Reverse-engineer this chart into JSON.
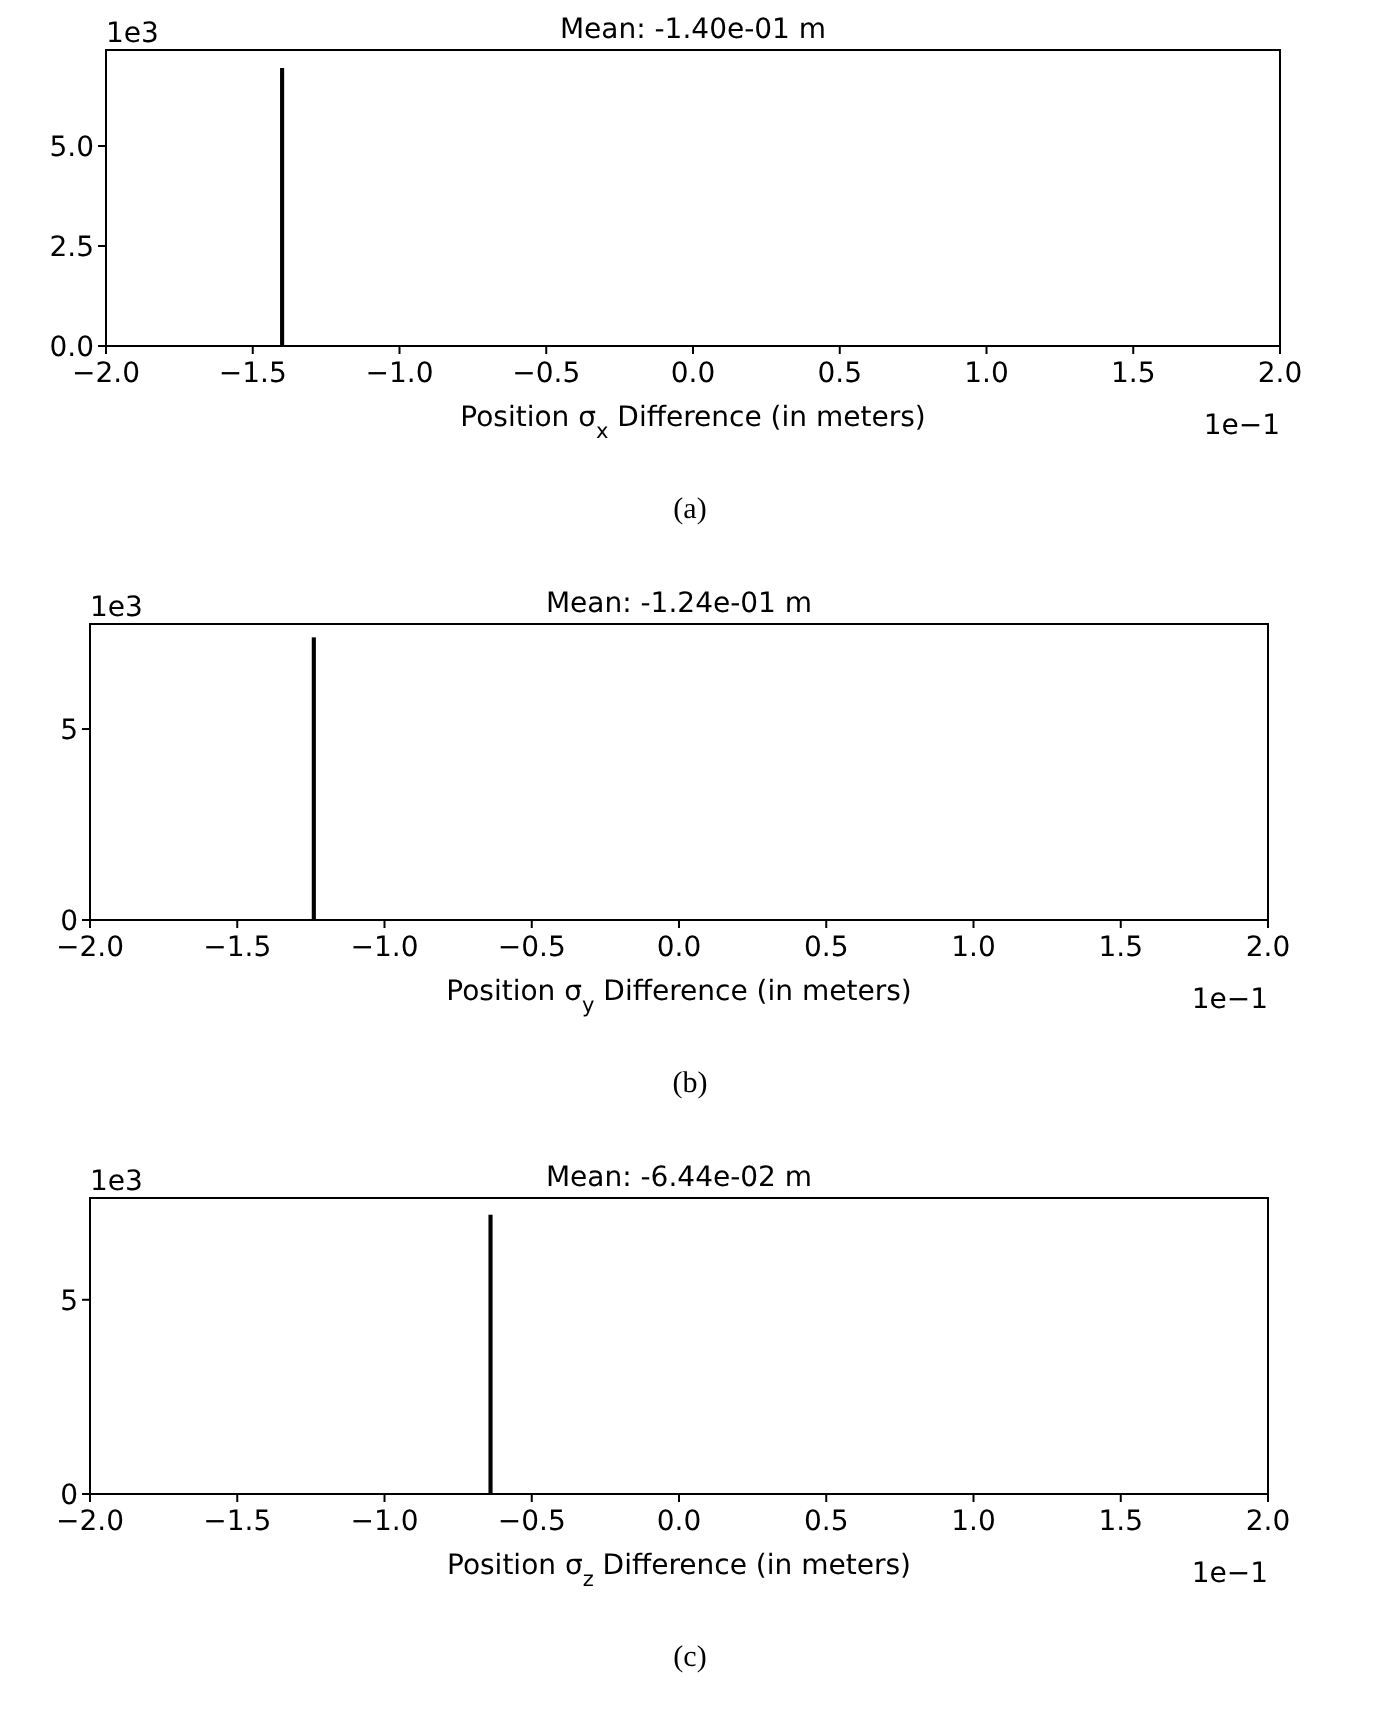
{
  "chart_data": [
    {
      "type": "histogram",
      "title": "Mean: -1.40e-01 m",
      "xlabel": "Position σ$_{x}$ Difference (in meters)",
      "bins": [
        -1.407,
        -1.393
      ],
      "values": [
        6.95
      ],
      "color": "#000000",
      "xlim": [
        -2,
        2
      ],
      "xticks": [
        {
          "value": -2,
          "label": "−2.0"
        },
        {
          "value": -1.5,
          "label": "−1.5"
        },
        {
          "value": -1,
          "label": "−1.0"
        },
        {
          "value": -0.5,
          "label": "−0.5"
        },
        {
          "value": 0,
          "label": "0.0"
        },
        {
          "value": 0.5,
          "label": "0.5"
        },
        {
          "value": 1,
          "label": "1.0"
        },
        {
          "value": 1.5,
          "label": "1.5"
        },
        {
          "value": 2,
          "label": "2.0"
        }
      ],
      "ylim": [
        0,
        7.4
      ],
      "yticks": [
        {
          "value": 0,
          "label": "0.0"
        },
        {
          "value": 2.5,
          "label": "2.5"
        },
        {
          "value": 5,
          "label": "5.0"
        }
      ],
      "annotations": [
        "1e3",
        "1e−1",
        "(a)"
      ]
    },
    {
      "type": "histogram",
      "title": "Mean: -1.24e-01 m",
      "xlabel": "Position σ$_{y}$ Difference (in meters)",
      "bins": [
        -1.247,
        -1.233
      ],
      "values": [
        7.4
      ],
      "color": "#000000",
      "xlim": [
        -2,
        2
      ],
      "xticks": [
        {
          "value": -2,
          "label": "−2.0"
        },
        {
          "value": -1.5,
          "label": "−1.5"
        },
        {
          "value": -1,
          "label": "−1.0"
        },
        {
          "value": -0.5,
          "label": "−0.5"
        },
        {
          "value": 0,
          "label": "0.0"
        },
        {
          "value": 0.5,
          "label": "0.5"
        },
        {
          "value": 1,
          "label": "1.0"
        },
        {
          "value": 1.5,
          "label": "1.5"
        },
        {
          "value": 2,
          "label": "2.0"
        }
      ],
      "ylim": [
        0,
        7.75
      ],
      "yticks": [
        {
          "value": 0,
          "label": "0"
        },
        {
          "value": 5,
          "label": "5"
        }
      ],
      "annotations": [
        "1e3",
        "1e−1",
        "(b)"
      ]
    },
    {
      "type": "histogram",
      "title": "Mean: -6.44e-02 m",
      "xlabel": "Position σ$_{z}$ Difference (in meters)",
      "bins": [
        -0.647,
        -0.633
      ],
      "values": [
        7.19
      ],
      "color": "#000000",
      "xlim": [
        -2,
        2
      ],
      "xticks": [
        {
          "value": -2,
          "label": "−2.0"
        },
        {
          "value": -1.5,
          "label": "−1.5"
        },
        {
          "value": -1,
          "label": "−1.0"
        },
        {
          "value": -0.5,
          "label": "−0.5"
        },
        {
          "value": 0,
          "label": "0.0"
        },
        {
          "value": 0.5,
          "label": "0.5"
        },
        {
          "value": 1,
          "label": "1.0"
        },
        {
          "value": 1.5,
          "label": "1.5"
        },
        {
          "value": 2,
          "label": "2.0"
        }
      ],
      "ylim": [
        0,
        7.62
      ],
      "yticks": [
        {
          "value": 0,
          "label": "0"
        },
        {
          "value": 5,
          "label": "5"
        }
      ],
      "annotations": [
        "1e3",
        "1e−1",
        "(c)"
      ]
    }
  ]
}
